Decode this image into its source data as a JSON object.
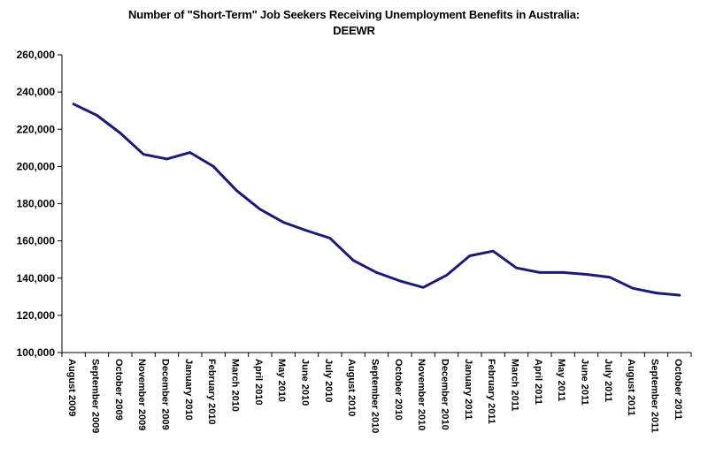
{
  "chart_data": {
    "type": "line",
    "title_line1": "Number of \"Short-Term\" Job Seekers Receiving Unemployment Benefits in Australia:",
    "title_line2": "DEEWR",
    "xlabel": "",
    "ylabel": "",
    "ylim": [
      100000,
      260000
    ],
    "yticks": [
      100000,
      120000,
      140000,
      160000,
      180000,
      200000,
      220000,
      240000,
      260000
    ],
    "ytick_labels": [
      "100,000",
      "120,000",
      "140,000",
      "160,000",
      "180,000",
      "200,000",
      "220,000",
      "240,000",
      "260,000"
    ],
    "grid": false,
    "legend": "none",
    "line_color": "#1a1a7a",
    "categories": [
      "August 2009",
      "September 2009",
      "October 2009",
      "November 2009",
      "December 2009",
      "January 2010",
      "February 2010",
      "March 2010",
      "April 2010",
      "May 2010",
      "June 2010",
      "July 2010",
      "August 2010",
      "September 2010",
      "October 2010",
      "November 2010",
      "December 2010",
      "January 2011",
      "February 2011",
      "March 2011",
      "April 2011",
      "May 2011",
      "June 2011",
      "July 2011",
      "August 2011",
      "September 2011",
      "October 2011"
    ],
    "series": [
      {
        "values": [
          233500,
          227500,
          218000,
          206500,
          204000,
          207500,
          200000,
          187000,
          177000,
          170000,
          165500,
          161500,
          149500,
          143000,
          138500,
          135000,
          141500,
          152000,
          154500,
          145500,
          143000,
          143000,
          142000,
          140500,
          134500,
          132000,
          130800
        ]
      }
    ]
  }
}
